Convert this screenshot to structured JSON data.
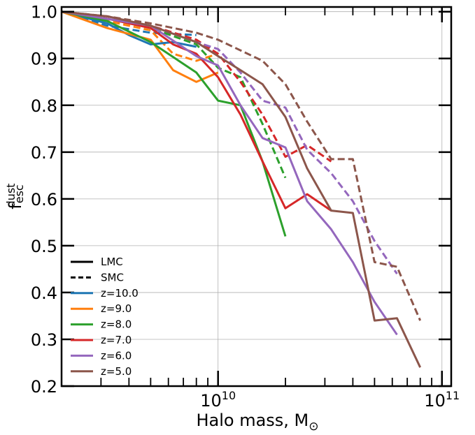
{
  "chart_data": {
    "type": "line",
    "xscale": "log",
    "xlim": [
      2000000000,
      110000000000
    ],
    "ylim": [
      0.2,
      1.01
    ],
    "xlabel": "Halo mass, M",
    "xlabel_sub": "⊙",
    "ylabel": "f",
    "ylabel_sup": "dust",
    "ylabel_sub": "esc",
    "grid": true,
    "x_tick_labels": [
      {
        "value": 10000000000,
        "base": "10",
        "exp": "10"
      },
      {
        "value": 100000000000,
        "base": "10",
        "exp": "11"
      }
    ],
    "y_ticks": [
      0.2,
      0.3,
      0.4,
      0.5,
      0.6,
      0.7,
      0.8,
      0.9,
      1.0
    ],
    "y_tick_labels": [
      "0.2",
      "0.3",
      "0.4",
      "0.5",
      "0.6",
      "0.7",
      "0.8",
      "0.9",
      "1.0"
    ],
    "legend": {
      "placement": "lower-left",
      "entries": [
        {
          "label": "LMC",
          "color": "#000000",
          "style": "solid"
        },
        {
          "label": "SMC",
          "color": "#000000",
          "style": "dashed"
        },
        {
          "label": "z=10.0",
          "color": "#1f77b4",
          "style": "solid"
        },
        {
          "label": "z=9.0",
          "color": "#ff7f0e",
          "style": "solid"
        },
        {
          "label": "z=8.0",
          "color": "#2ca02c",
          "style": "solid"
        },
        {
          "label": "z=7.0",
          "color": "#d62728",
          "style": "solid"
        },
        {
          "label": "z=6.0",
          "color": "#9467bd",
          "style": "solid"
        },
        {
          "label": "z=5.0",
          "color": "#8c564b",
          "style": "solid"
        }
      ]
    },
    "series": [
      {
        "name": "z=10.0 SMC",
        "color": "#1f77b4",
        "dust": "SMC",
        "x": [
          2000000000.0,
          3200000000.0,
          5000000000.0,
          8000000000.0
        ],
        "y": [
          1.0,
          0.97,
          0.955,
          0.95
        ]
      },
      {
        "name": "z=9.0 SMC",
        "color": "#ff7f0e",
        "dust": "SMC",
        "x": [
          2000000000.0,
          3200000000.0,
          5000000000.0,
          6300000000.0,
          8000000000.0,
          10000000000.0
        ],
        "y": [
          1.0,
          0.98,
          0.96,
          0.91,
          0.895,
          0.91
        ]
      },
      {
        "name": "z=8.0 SMC",
        "color": "#2ca02c",
        "dust": "SMC",
        "x": [
          2000000000.0,
          3200000000.0,
          5000000000.0,
          8000000000.0,
          10000000000.0,
          12600000000.0,
          15800000000.0,
          20000000000.0
        ],
        "y": [
          1.0,
          0.985,
          0.965,
          0.93,
          0.88,
          0.86,
          0.76,
          0.645
        ]
      },
      {
        "name": "z=7.0 SMC",
        "color": "#d62728",
        "dust": "SMC",
        "x": [
          2000000000.0,
          5000000000.0,
          8000000000.0,
          10000000000.0,
          12600000000.0,
          15800000000.0,
          20000000000.0,
          25000000000.0,
          32000000000.0
        ],
        "y": [
          1.0,
          0.97,
          0.94,
          0.91,
          0.85,
          0.78,
          0.69,
          0.715,
          0.68
        ]
      },
      {
        "name": "z=6.0 SMC",
        "color": "#9467bd",
        "dust": "SMC",
        "x": [
          2000000000.0,
          5000000000.0,
          8000000000.0,
          10000000000.0,
          12600000000.0,
          15800000000.0,
          20000000000.0,
          25000000000.0,
          32000000000.0,
          40000000000.0,
          50000000000.0,
          63000000000.0
        ],
        "y": [
          1.0,
          0.97,
          0.935,
          0.92,
          0.87,
          0.81,
          0.795,
          0.705,
          0.655,
          0.595,
          0.51,
          0.44
        ]
      },
      {
        "name": "z=5.0 SMC",
        "color": "#8c564b",
        "dust": "SMC",
        "x": [
          2000000000.0,
          3200000000.0,
          5000000000.0,
          8000000000.0,
          10000000000.0,
          15800000000.0,
          20000000000.0,
          25000000000.0,
          32000000000.0,
          40000000000.0,
          50000000000.0,
          63000000000.0,
          80000000000.0
        ],
        "y": [
          1.0,
          0.99,
          0.975,
          0.955,
          0.94,
          0.895,
          0.845,
          0.765,
          0.685,
          0.685,
          0.465,
          0.455,
          0.34
        ]
      },
      {
        "name": "z=10.0 LMC",
        "color": "#1f77b4",
        "dust": "LMC",
        "x": [
          2000000000.0,
          3200000000.0,
          4000000000.0,
          5000000000.0,
          6300000000.0,
          8000000000.0
        ],
        "y": [
          1.0,
          0.975,
          0.95,
          0.93,
          0.935,
          0.925
        ]
      },
      {
        "name": "z=9.0 LMC",
        "color": "#ff7f0e",
        "dust": "LMC",
        "x": [
          2000000000.0,
          3200000000.0,
          5000000000.0,
          6300000000.0,
          8000000000.0,
          10000000000.0
        ],
        "y": [
          1.0,
          0.965,
          0.94,
          0.875,
          0.85,
          0.87
        ]
      },
      {
        "name": "z=8.0 LMC",
        "color": "#2ca02c",
        "dust": "LMC",
        "x": [
          2000000000.0,
          3200000000.0,
          5000000000.0,
          8000000000.0,
          10000000000.0,
          12600000000.0,
          15800000000.0,
          20000000000.0
        ],
        "y": [
          1.0,
          0.98,
          0.935,
          0.87,
          0.81,
          0.8,
          0.68,
          0.52
        ]
      },
      {
        "name": "z=7.0 LMC",
        "color": "#d62728",
        "dust": "LMC",
        "x": [
          2000000000.0,
          3200000000.0,
          5000000000.0,
          6300000000.0,
          8000000000.0,
          10000000000.0,
          12600000000.0,
          15800000000.0,
          20000000000.0,
          25000000000.0,
          32000000000.0
        ],
        "y": [
          1.0,
          0.985,
          0.965,
          0.93,
          0.91,
          0.86,
          0.78,
          0.68,
          0.58,
          0.61,
          0.575
        ]
      },
      {
        "name": "z=6.0 LMC",
        "color": "#9467bd",
        "dust": "LMC",
        "x": [
          2000000000.0,
          5000000000.0,
          8000000000.0,
          10000000000.0,
          12600000000.0,
          15800000000.0,
          20000000000.0,
          25000000000.0,
          32000000000.0,
          40000000000.0,
          50000000000.0,
          63000000000.0
        ],
        "y": [
          1.0,
          0.97,
          0.905,
          0.885,
          0.8,
          0.73,
          0.71,
          0.595,
          0.535,
          0.465,
          0.38,
          0.31
        ]
      },
      {
        "name": "z=5.0 LMC",
        "color": "#8c564b",
        "dust": "LMC",
        "x": [
          2000000000.0,
          3200000000.0,
          5000000000.0,
          8000000000.0,
          10000000000.0,
          12600000000.0,
          15800000000.0,
          20000000000.0,
          25000000000.0,
          32000000000.0,
          40000000000.0,
          50000000000.0,
          63000000000.0,
          80000000000.0
        ],
        "y": [
          1.0,
          0.99,
          0.97,
          0.935,
          0.905,
          0.875,
          0.845,
          0.775,
          0.665,
          0.575,
          0.57,
          0.34,
          0.345,
          0.24
        ]
      }
    ]
  }
}
